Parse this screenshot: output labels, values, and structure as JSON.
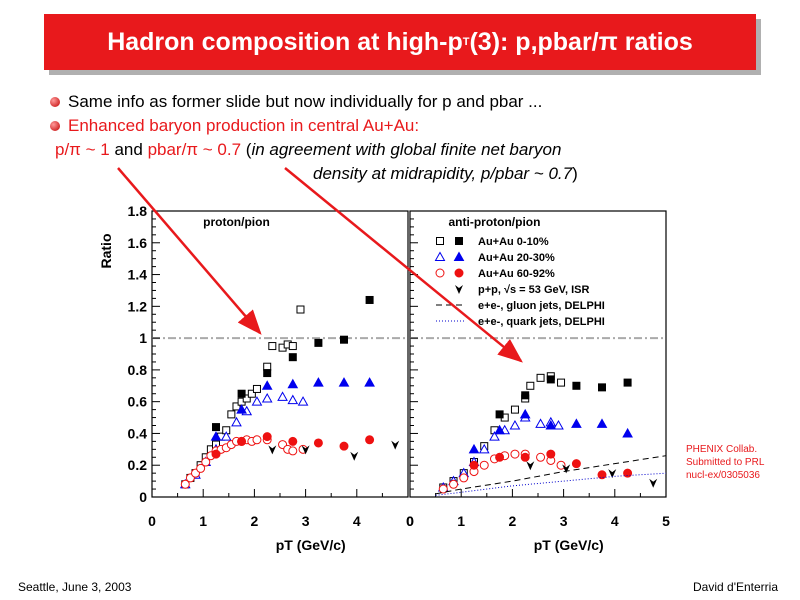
{
  "slide": {
    "title_pre": "Hadron composition at high-p",
    "title_sub": "T",
    "title_post": " (3): p,pbar/π ratios",
    "bullet1": "Same info as former slide but now individually for p and pbar ...",
    "bullet2": "Enhanced baryon production in central Au+Au:",
    "line3_a": "p/π ~ 1",
    "line3_b": " and ",
    "line3_c": "pbar/π ~ 0.7",
    "line3_d": " (",
    "line3_e": "in agreement with global finite net baryon",
    "line4": "density at midrapidity, p/pbar ~ 0.7",
    "line4_close": ")",
    "reference": [
      "PHENIX Collab.",
      "Submitted to PRL",
      "nucl-ex/0305036"
    ],
    "footer_left": "Seattle, June  3, 2003",
    "footer_right": "David d'Enterria"
  },
  "colors": {
    "title_bg": "#e8191c",
    "accent": "#e8191c",
    "central": "#000000",
    "midcentral": "#0000ee",
    "peripheral": "#ee1111"
  },
  "chart_data": [
    {
      "type": "scatter",
      "title": "proton/pion",
      "xlabel": "pT (GeV/c)",
      "ylabel": "Ratio",
      "xlim": [
        0,
        5
      ],
      "ylim": [
        0,
        1.8
      ],
      "xticks": [
        0,
        1,
        2,
        3,
        4
      ],
      "yticks": [
        0,
        0.2,
        0.4,
        0.6,
        0.8,
        1,
        1.2,
        1.4,
        1.6,
        1.8
      ],
      "reference_line": 1.0,
      "series": [
        {
          "name": "Au+Au 0-10%",
          "marker": "square-open",
          "points": [
            [
              0.65,
              0.08
            ],
            [
              0.75,
              0.12
            ],
            [
              0.85,
              0.15
            ],
            [
              0.95,
              0.2
            ],
            [
              1.05,
              0.25
            ],
            [
              1.15,
              0.3
            ],
            [
              1.25,
              0.33
            ],
            [
              1.35,
              0.38
            ],
            [
              1.45,
              0.42
            ],
            [
              1.55,
              0.52
            ],
            [
              1.65,
              0.57
            ],
            [
              1.75,
              0.6
            ],
            [
              1.85,
              0.62
            ],
            [
              1.95,
              0.65
            ],
            [
              2.05,
              0.68
            ],
            [
              2.25,
              0.82
            ],
            [
              2.35,
              0.95
            ],
            [
              2.55,
              0.94
            ],
            [
              2.65,
              0.96
            ],
            [
              2.75,
              0.95
            ],
            [
              2.9,
              1.18
            ]
          ]
        },
        {
          "name": "Au+Au 0-10%",
          "marker": "square-filled",
          "points": [
            [
              1.25,
              0.44
            ],
            [
              1.75,
              0.65
            ],
            [
              2.25,
              0.78
            ],
            [
              2.75,
              0.88
            ],
            [
              3.25,
              0.97
            ],
            [
              3.75,
              0.99
            ],
            [
              4.25,
              1.24
            ]
          ]
        },
        {
          "name": "Au+Au 20-30%",
          "marker": "triangle-open",
          "points": [
            [
              0.65,
              0.08
            ],
            [
              0.85,
              0.14
            ],
            [
              1.05,
              0.22
            ],
            [
              1.25,
              0.3
            ],
            [
              1.45,
              0.38
            ],
            [
              1.65,
              0.47
            ],
            [
              1.85,
              0.54
            ],
            [
              2.05,
              0.6
            ],
            [
              2.25,
              0.62
            ],
            [
              2.55,
              0.63
            ],
            [
              2.75,
              0.61
            ],
            [
              2.95,
              0.6
            ]
          ]
        },
        {
          "name": "Au+Au 20-30%",
          "marker": "triangle-filled",
          "points": [
            [
              1.25,
              0.38
            ],
            [
              1.75,
              0.55
            ],
            [
              2.25,
              0.7
            ],
            [
              2.75,
              0.71
            ],
            [
              3.25,
              0.72
            ],
            [
              3.75,
              0.72
            ],
            [
              4.25,
              0.72
            ]
          ]
        },
        {
          "name": "Au+Au 60-92%",
          "marker": "circle-open",
          "points": [
            [
              0.65,
              0.08
            ],
            [
              0.75,
              0.12
            ],
            [
              0.85,
              0.15
            ],
            [
              0.95,
              0.18
            ],
            [
              1.05,
              0.22
            ],
            [
              1.15,
              0.26
            ],
            [
              1.25,
              0.29
            ],
            [
              1.35,
              0.3
            ],
            [
              1.45,
              0.31
            ],
            [
              1.55,
              0.33
            ],
            [
              1.65,
              0.35
            ],
            [
              1.75,
              0.35
            ],
            [
              1.85,
              0.36
            ],
            [
              1.95,
              0.35
            ],
            [
              2.05,
              0.36
            ],
            [
              2.25,
              0.36
            ],
            [
              2.55,
              0.33
            ],
            [
              2.65,
              0.3
            ],
            [
              2.75,
              0.29
            ],
            [
              2.95,
              0.3
            ]
          ]
        },
        {
          "name": "Au+Au 60-92%",
          "marker": "circle-filled",
          "points": [
            [
              1.25,
              0.27
            ],
            [
              1.75,
              0.35
            ],
            [
              2.25,
              0.38
            ],
            [
              2.75,
              0.35
            ],
            [
              3.25,
              0.34
            ],
            [
              3.75,
              0.32
            ],
            [
              4.25,
              0.36
            ]
          ]
        },
        {
          "name": "p+p, √s = 53 GeV, ISR",
          "marker": "star",
          "points": [
            [
              2.35,
              0.3
            ],
            [
              3.0,
              0.3
            ],
            [
              3.95,
              0.26
            ],
            [
              4.75,
              0.33
            ]
          ]
        }
      ]
    },
    {
      "type": "scatter",
      "title": "anti-proton/pion",
      "xlabel": "pT (GeV/c)",
      "xlim": [
        0,
        5
      ],
      "ylim": [
        0,
        1.8
      ],
      "xticks": [
        0,
        1,
        2,
        3,
        4,
        5
      ],
      "reference_line": 1.0,
      "legend": [
        "Au+Au 0-10%",
        "Au+Au 20-30%",
        "Au+Au 60-92%",
        "p+p, √s = 53 GeV, ISR",
        "e+e-, gluon jets, DELPHI",
        "e+e-, quark jets, DELPHI"
      ],
      "series": [
        {
          "name": "Au+Au 0-10%",
          "marker": "square-open",
          "points": [
            [
              0.65,
              0.06
            ],
            [
              0.85,
              0.1
            ],
            [
              1.05,
              0.15
            ],
            [
              1.25,
              0.22
            ],
            [
              1.45,
              0.32
            ],
            [
              1.65,
              0.42
            ],
            [
              1.85,
              0.5
            ],
            [
              2.05,
              0.55
            ],
            [
              2.25,
              0.62
            ],
            [
              2.35,
              0.7
            ],
            [
              2.55,
              0.75
            ],
            [
              2.75,
              0.76
            ],
            [
              2.95,
              0.72
            ]
          ]
        },
        {
          "name": "Au+Au 0-10%",
          "marker": "square-filled",
          "points": [
            [
              1.75,
              0.52
            ],
            [
              2.25,
              0.64
            ],
            [
              2.75,
              0.74
            ],
            [
              3.25,
              0.7
            ],
            [
              3.75,
              0.69
            ],
            [
              4.25,
              0.72
            ]
          ]
        },
        {
          "name": "Au+Au 20-30%",
          "marker": "triangle-open",
          "points": [
            [
              0.65,
              0.06
            ],
            [
              0.85,
              0.1
            ],
            [
              1.05,
              0.15
            ],
            [
              1.25,
              0.22
            ],
            [
              1.45,
              0.3
            ],
            [
              1.65,
              0.38
            ],
            [
              1.85,
              0.42
            ],
            [
              2.05,
              0.45
            ],
            [
              2.25,
              0.5
            ],
            [
              2.55,
              0.46
            ],
            [
              2.75,
              0.47
            ],
            [
              2.9,
              0.45
            ]
          ]
        },
        {
          "name": "Au+Au 20-30%",
          "marker": "triangle-filled",
          "points": [
            [
              1.25,
              0.3
            ],
            [
              1.75,
              0.42
            ],
            [
              2.25,
              0.52
            ],
            [
              2.75,
              0.45
            ],
            [
              3.25,
              0.46
            ],
            [
              3.75,
              0.46
            ],
            [
              4.25,
              0.4
            ]
          ]
        },
        {
          "name": "Au+Au 60-92%",
          "marker": "circle-open",
          "points": [
            [
              0.65,
              0.05
            ],
            [
              0.85,
              0.08
            ],
            [
              1.05,
              0.12
            ],
            [
              1.25,
              0.16
            ],
            [
              1.45,
              0.2
            ],
            [
              1.65,
              0.24
            ],
            [
              1.85,
              0.26
            ],
            [
              2.05,
              0.27
            ],
            [
              2.25,
              0.27
            ],
            [
              2.55,
              0.25
            ],
            [
              2.75,
              0.23
            ],
            [
              2.95,
              0.2
            ]
          ]
        },
        {
          "name": "Au+Au 60-92%",
          "marker": "circle-filled",
          "points": [
            [
              1.25,
              0.2
            ],
            [
              1.75,
              0.25
            ],
            [
              2.25,
              0.25
            ],
            [
              2.75,
              0.27
            ],
            [
              3.25,
              0.21
            ],
            [
              3.75,
              0.14
            ],
            [
              4.25,
              0.15
            ]
          ]
        },
        {
          "name": "p+p, √s = 53 GeV, ISR",
          "marker": "star",
          "points": [
            [
              2.35,
              0.2
            ],
            [
              3.05,
              0.18
            ],
            [
              3.95,
              0.15
            ],
            [
              4.75,
              0.09
            ]
          ]
        },
        {
          "name": "e+e-, gluon jets, DELPHI",
          "marker": "dashed-line",
          "points": [
            [
              0.5,
              0.02
            ],
            [
              1.0,
              0.05
            ],
            [
              2.0,
              0.1
            ],
            [
              3.0,
              0.16
            ],
            [
              4.0,
              0.21
            ],
            [
              5.0,
              0.26
            ]
          ]
        },
        {
          "name": "e+e-, quark jets, DELPHI",
          "marker": "dotted-line",
          "points": [
            [
              0.5,
              0.01
            ],
            [
              1.0,
              0.03
            ],
            [
              2.0,
              0.07
            ],
            [
              3.0,
              0.1
            ],
            [
              4.0,
              0.13
            ],
            [
              5.0,
              0.15
            ]
          ]
        }
      ]
    }
  ]
}
